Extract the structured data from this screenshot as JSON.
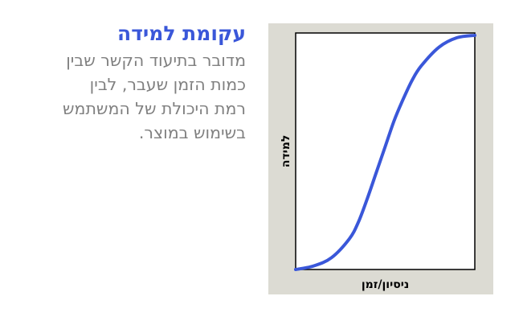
{
  "heading": {
    "title": "עקומת למידה",
    "lines": [
      "מדובר בתיעוד הקשר שבין",
      "כמות הזמן  שעבר, לבין",
      "רמת היכולת של המשתמש",
      "בשימוש במוצר."
    ]
  },
  "colors": {
    "title": "#3a57d9",
    "body_text": "#808080",
    "curve": "#3a57d9",
    "panel": "#dcdbd3"
  },
  "chart_data": {
    "type": "line",
    "title": "",
    "xlabel": "ניסיון/זמן",
    "ylabel": "למידה",
    "xlim": [
      0,
      1
    ],
    "ylim": [
      0,
      1
    ],
    "grid": false,
    "legend": "none",
    "series": [
      {
        "x": [
          0,
          0.1,
          0.2,
          0.3,
          0.35,
          0.4,
          0.45,
          0.5,
          0.55,
          0.6,
          0.65,
          0.7,
          0.8,
          0.9,
          1.0
        ],
        "y": [
          0.0,
          0.015,
          0.05,
          0.13,
          0.2,
          0.3,
          0.41,
          0.52,
          0.63,
          0.72,
          0.8,
          0.86,
          0.94,
          0.98,
          0.99
        ]
      }
    ]
  }
}
